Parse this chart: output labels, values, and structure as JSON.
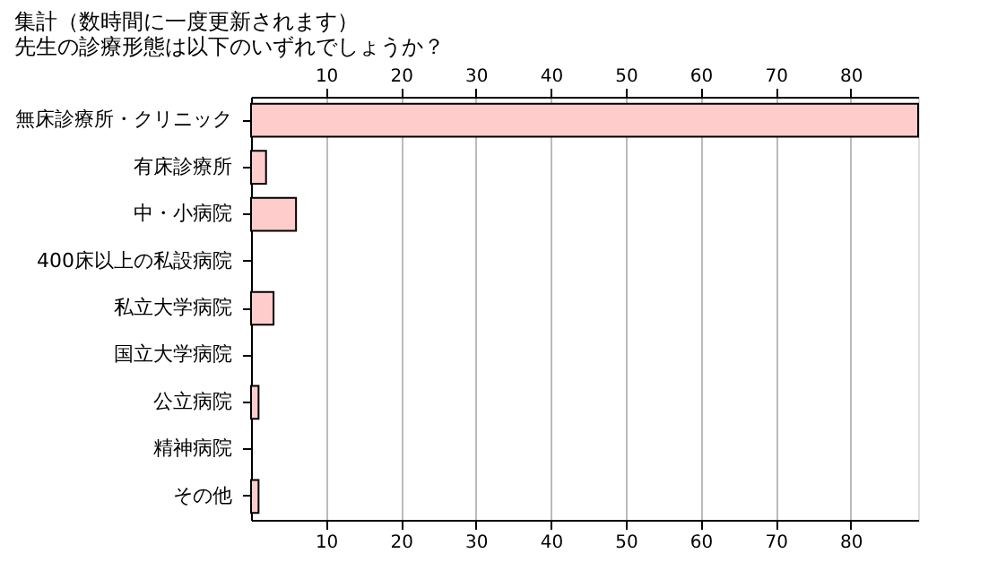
{
  "chart_data": {
    "type": "bar",
    "orientation": "horizontal",
    "title": "集計（数時間に一度更新されます）",
    "subtitle": "先生の診療形態は以下のいずれでしょうか？",
    "categories": [
      "無床診療所・クリニック",
      "有床診療所",
      "中・小病院",
      "400床以上の私設病院",
      "私立大学病院",
      "国立大学病院",
      "公立病院",
      "精神病院",
      "その他"
    ],
    "values": [
      89,
      2,
      6,
      0,
      3,
      0,
      1,
      0,
      1
    ],
    "color": "#ffcccc",
    "xlim": [
      0,
      89
    ],
    "xticks": [
      10,
      20,
      30,
      40,
      50,
      60,
      70,
      80
    ],
    "x2lim": [
      0,
      89
    ],
    "x2ticks": [
      10,
      20,
      30,
      40,
      50,
      60,
      70,
      80
    ],
    "grid": "x"
  }
}
